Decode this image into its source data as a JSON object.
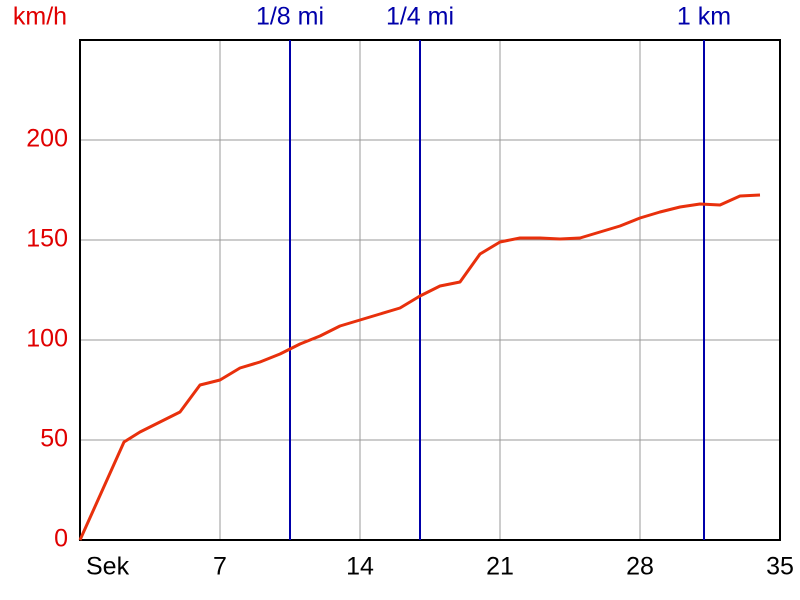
{
  "chart_data": {
    "type": "line",
    "y_label": "km/h",
    "x": [
      0,
      2.2,
      3,
      4,
      5,
      6,
      7,
      8,
      9,
      10,
      11,
      12,
      13,
      14,
      15,
      16,
      17,
      18,
      19,
      20,
      21,
      22,
      23,
      24,
      25,
      26,
      27,
      28,
      29,
      30,
      31,
      32,
      33,
      34
    ],
    "series": [
      {
        "color": "#e8300c",
        "values": [
          0,
          49,
          54,
          59,
          64,
          77.5,
          80,
          86,
          89,
          93,
          98,
          102,
          107,
          110,
          113,
          116,
          122,
          127,
          129,
          143,
          149,
          151,
          151,
          150.5,
          151,
          154,
          157,
          161,
          164,
          166.5,
          168,
          167.5,
          172,
          172.5
        ]
      }
    ],
    "xlim": [
      0,
      35
    ],
    "xticks": [
      {
        "value": 0,
        "label": "Sek"
      },
      7,
      14,
      21,
      28,
      35
    ],
    "ylim": [
      0,
      250
    ],
    "yticks": [
      0,
      50,
      100,
      150,
      200
    ],
    "grid": true,
    "markers": [
      {
        "label": "1/8 mi",
        "x": 10.5,
        "color": "#0000aa"
      },
      {
        "label": "1/4 mi",
        "x": 17,
        "color": "#0000aa"
      },
      {
        "label": "1 km",
        "x": 31.2,
        "color": "#0000aa"
      }
    ]
  }
}
